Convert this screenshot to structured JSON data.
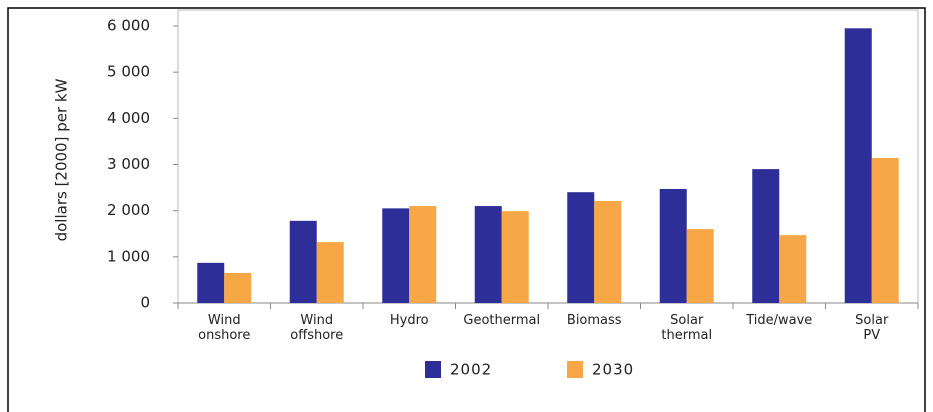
{
  "chart_data": {
    "type": "bar",
    "y_axis_label": "dollars [2000] per kW",
    "categories": [
      "Wind\nonshore",
      "Wind\noffshore",
      "Hydro",
      "Geothermal",
      "Biomass",
      "Solar\nthermal",
      "Tide/wave",
      "Solar\nPV"
    ],
    "series": [
      {
        "name": "2002",
        "color": "#2e2e99",
        "values": [
          870,
          1780,
          2050,
          2100,
          2400,
          2470,
          2900,
          5950
        ]
      },
      {
        "name": "2030",
        "color": "#f7a745",
        "values": [
          650,
          1320,
          2100,
          1990,
          2210,
          1600,
          1470,
          3140
        ]
      }
    ],
    "ylim": [
      0,
      6000
    ],
    "yticks": [
      0,
      {
        "value": 1000,
        "label": "1 000"
      },
      {
        "value": 2000,
        "label": "2 000"
      },
      {
        "value": 3000,
        "label": "3 000"
      },
      {
        "value": 4000,
        "label": "4 000"
      },
      {
        "value": 5000,
        "label": "5 000"
      },
      {
        "value": 6000,
        "label": "6 000"
      }
    ],
    "grid": false,
    "legend": "bottom"
  }
}
